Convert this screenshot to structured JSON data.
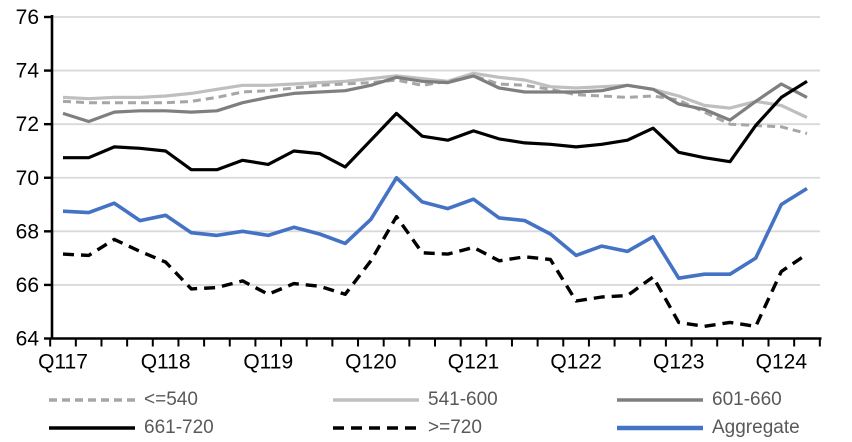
{
  "chart_data": {
    "type": "line",
    "title": "",
    "xlabel": "",
    "ylabel": "",
    "x_tick_labels": [
      "Q117",
      "Q118",
      "Q119",
      "Q120",
      "Q121",
      "Q122",
      "Q123",
      "Q124"
    ],
    "x_points_per_label": 4,
    "n_points": 30,
    "ylim": [
      64,
      76
    ],
    "yticks": [
      64,
      66,
      68,
      70,
      72,
      74,
      76
    ],
    "grid": true,
    "gridline_color": "#d9d9d9",
    "axis_color": "#000000",
    "legend_position": "bottom",
    "legend_text_color": "#595959",
    "series": [
      {
        "name": "<=540",
        "color": "#a6a6a6",
        "style": "dashed",
        "dash": "8 5",
        "width": 3,
        "values": [
          72.85,
          72.8,
          72.8,
          72.8,
          72.8,
          72.85,
          73.0,
          73.2,
          73.25,
          73.35,
          73.45,
          73.5,
          73.55,
          73.65,
          73.45,
          73.6,
          73.8,
          73.5,
          73.45,
          73.3,
          73.1,
          73.05,
          73.0,
          73.05,
          72.9,
          72.45,
          72.0,
          71.95,
          71.9,
          71.65
        ]
      },
      {
        "name": "541-600",
        "color": "#bfbfbf",
        "style": "solid",
        "dash": "",
        "width": 3.2,
        "values": [
          73.0,
          72.95,
          73.0,
          73.0,
          73.05,
          73.15,
          73.3,
          73.45,
          73.45,
          73.5,
          73.55,
          73.6,
          73.7,
          73.8,
          73.7,
          73.6,
          73.9,
          73.75,
          73.65,
          73.4,
          73.35,
          73.4,
          73.45,
          73.3,
          73.05,
          72.7,
          72.6,
          72.85,
          72.7,
          72.25
        ]
      },
      {
        "name": "601-660",
        "color": "#7f7f7f",
        "style": "solid",
        "dash": "",
        "width": 3.2,
        "values": [
          72.4,
          72.1,
          72.45,
          72.5,
          72.5,
          72.45,
          72.5,
          72.8,
          73.0,
          73.15,
          73.2,
          73.25,
          73.45,
          73.75,
          73.6,
          73.55,
          73.8,
          73.35,
          73.2,
          73.2,
          73.2,
          73.25,
          73.45,
          73.3,
          72.75,
          72.55,
          72.15,
          72.85,
          73.5,
          73.0
        ]
      },
      {
        "name": "661-720",
        "color": "#000000",
        "style": "solid",
        "dash": "",
        "width": 3.2,
        "values": [
          70.75,
          70.75,
          71.15,
          71.1,
          71.0,
          70.3,
          70.3,
          70.65,
          70.5,
          71.0,
          70.9,
          70.4,
          71.4,
          72.4,
          71.55,
          71.4,
          71.75,
          71.45,
          71.3,
          71.25,
          71.15,
          71.25,
          71.4,
          71.85,
          70.95,
          70.75,
          70.6,
          71.95,
          73.0,
          73.6
        ]
      },
      {
        "name": ">=720",
        "color": "#000000",
        "style": "dashed",
        "dash": "11 7",
        "width": 3.4,
        "values": [
          67.15,
          67.1,
          67.7,
          67.25,
          66.85,
          65.85,
          65.9,
          66.15,
          65.65,
          66.05,
          65.95,
          65.65,
          66.9,
          68.55,
          67.2,
          67.15,
          67.4,
          66.9,
          67.05,
          66.95,
          65.4,
          65.55,
          65.6,
          66.3,
          64.6,
          64.45,
          64.6,
          64.45,
          66.5,
          67.15
        ]
      },
      {
        "name": "Aggregate",
        "color": "#4472c4",
        "style": "solid",
        "dash": "",
        "width": 3.6,
        "values": [
          68.75,
          68.7,
          69.05,
          68.4,
          68.6,
          67.95,
          67.85,
          68.0,
          67.85,
          68.15,
          67.9,
          67.55,
          68.45,
          70.0,
          69.1,
          68.85,
          69.2,
          68.5,
          68.4,
          67.9,
          67.1,
          67.45,
          67.25,
          67.8,
          66.25,
          66.4,
          66.4,
          67.0,
          69.0,
          69.6
        ]
      }
    ]
  }
}
